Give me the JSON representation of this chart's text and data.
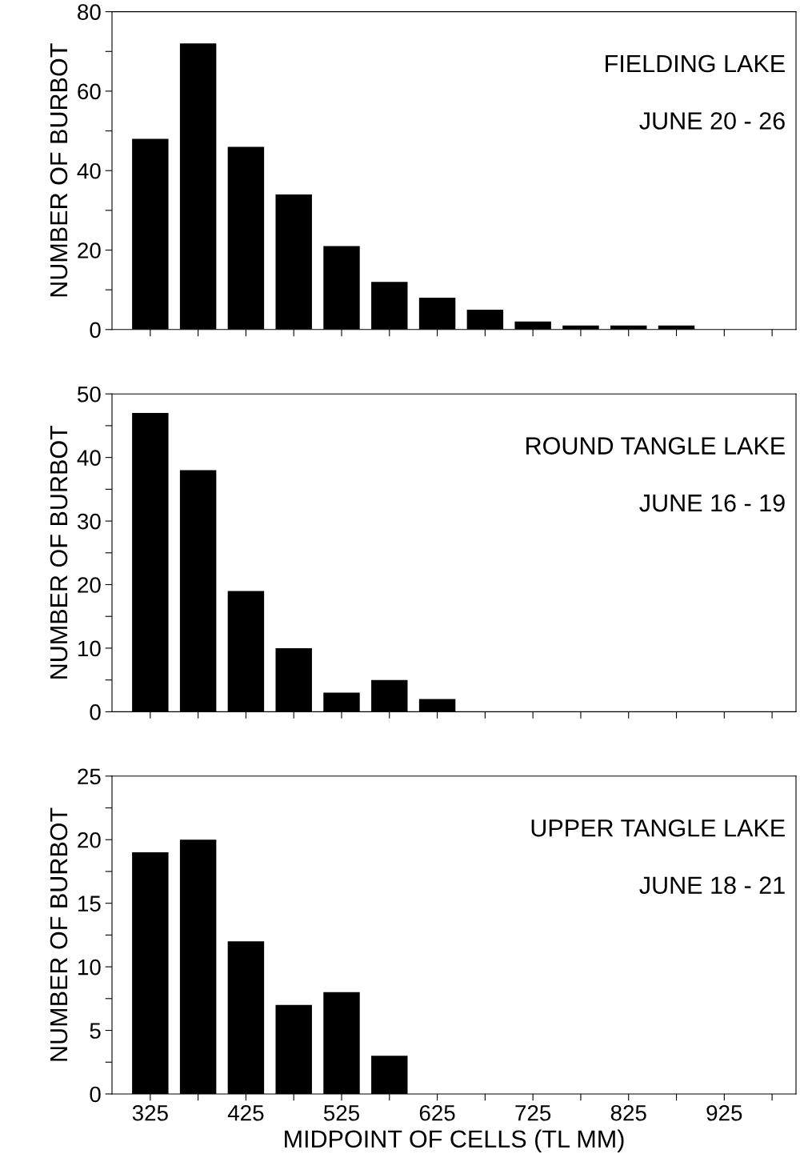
{
  "chart_data": [
    {
      "type": "bar",
      "ylabel": "NUMBER OF BURBOT",
      "x": [
        325,
        375,
        425,
        475,
        525,
        575,
        625,
        675,
        725,
        775,
        825,
        875
      ],
      "values": [
        48,
        72,
        46,
        34,
        21,
        12,
        8,
        5,
        2,
        1,
        1,
        1
      ],
      "color": "#000000",
      "xlim": [
        285,
        1000
      ],
      "xticks": [
        {
          "value": 325,
          "label": null
        },
        {
          "value": 375,
          "label": null
        },
        {
          "value": 425,
          "label": null
        },
        {
          "value": 475,
          "label": null
        },
        {
          "value": 525,
          "label": null
        },
        {
          "value": 575,
          "label": null
        },
        {
          "value": 625,
          "label": null
        },
        {
          "value": 675,
          "label": null
        },
        {
          "value": 725,
          "label": null
        },
        {
          "value": 775,
          "label": null
        },
        {
          "value": 825,
          "label": null
        },
        {
          "value": 875,
          "label": null
        },
        {
          "value": 925,
          "label": null
        },
        {
          "value": 975,
          "label": null
        }
      ],
      "ylim": [
        0,
        80
      ],
      "yticks": [
        0,
        {
          "value": 10,
          "label": null
        },
        20,
        {
          "value": 30,
          "label": null
        },
        40,
        {
          "value": 50,
          "label": null
        },
        60,
        {
          "value": 70,
          "label": null
        },
        80
      ],
      "tick_labels": "y",
      "annotations": [
        "FIELDING LAKE",
        "JUNE 20 - 26"
      ]
    },
    {
      "type": "bar",
      "ylabel": "NUMBER OF BURBOT",
      "x": [
        325,
        375,
        425,
        475,
        525,
        575,
        625
      ],
      "values": [
        47,
        38,
        19,
        10,
        3,
        5,
        2
      ],
      "color": "#000000",
      "xlim": [
        285,
        1000
      ],
      "xticks": [
        {
          "value": 325,
          "label": null
        },
        {
          "value": 375,
          "label": null
        },
        {
          "value": 425,
          "label": null
        },
        {
          "value": 475,
          "label": null
        },
        {
          "value": 525,
          "label": null
        },
        {
          "value": 575,
          "label": null
        },
        {
          "value": 625,
          "label": null
        },
        {
          "value": 675,
          "label": null
        },
        {
          "value": 725,
          "label": null
        },
        {
          "value": 775,
          "label": null
        },
        {
          "value": 825,
          "label": null
        },
        {
          "value": 875,
          "label": null
        },
        {
          "value": 925,
          "label": null
        },
        {
          "value": 975,
          "label": null
        }
      ],
      "ylim": [
        0,
        50
      ],
      "yticks": [
        0,
        {
          "value": 5,
          "label": null
        },
        10,
        {
          "value": 15,
          "label": null
        },
        20,
        {
          "value": 25,
          "label": null
        },
        30,
        {
          "value": 35,
          "label": null
        },
        40,
        {
          "value": 45,
          "label": null
        },
        50
      ],
      "tick_labels": "y",
      "annotations": [
        "ROUND TANGLE LAKE",
        "JUNE 16 - 19"
      ]
    },
    {
      "type": "bar",
      "ylabel": "NUMBER OF BURBOT",
      "xlabel": "MIDPOINT OF CELLS (TL MM)",
      "x": [
        325,
        375,
        425,
        475,
        525,
        575
      ],
      "values": [
        19,
        20,
        12,
        7,
        8,
        3
      ],
      "color": "#000000",
      "xlim": [
        285,
        1000
      ],
      "xticks": [
        325,
        {
          "value": 375,
          "label": null
        },
        425,
        {
          "value": 475,
          "label": null
        },
        525,
        {
          "value": 575,
          "label": null
        },
        625,
        {
          "value": 675,
          "label": null
        },
        725,
        {
          "value": 775,
          "label": null
        },
        825,
        {
          "value": 875,
          "label": null
        },
        925,
        {
          "value": 975,
          "label": null
        }
      ],
      "ylim": [
        0,
        25
      ],
      "yticks": [
        0,
        {
          "value": 2.5,
          "label": null
        },
        5,
        {
          "value": 7.5,
          "label": null
        },
        10,
        {
          "value": 12.5,
          "label": null
        },
        15,
        {
          "value": 17.5,
          "label": null
        },
        20,
        {
          "value": 22.5,
          "label": null
        },
        25
      ],
      "annotations": [
        "UPPER TANGLE LAKE",
        "JUNE 18 - 21"
      ]
    }
  ]
}
